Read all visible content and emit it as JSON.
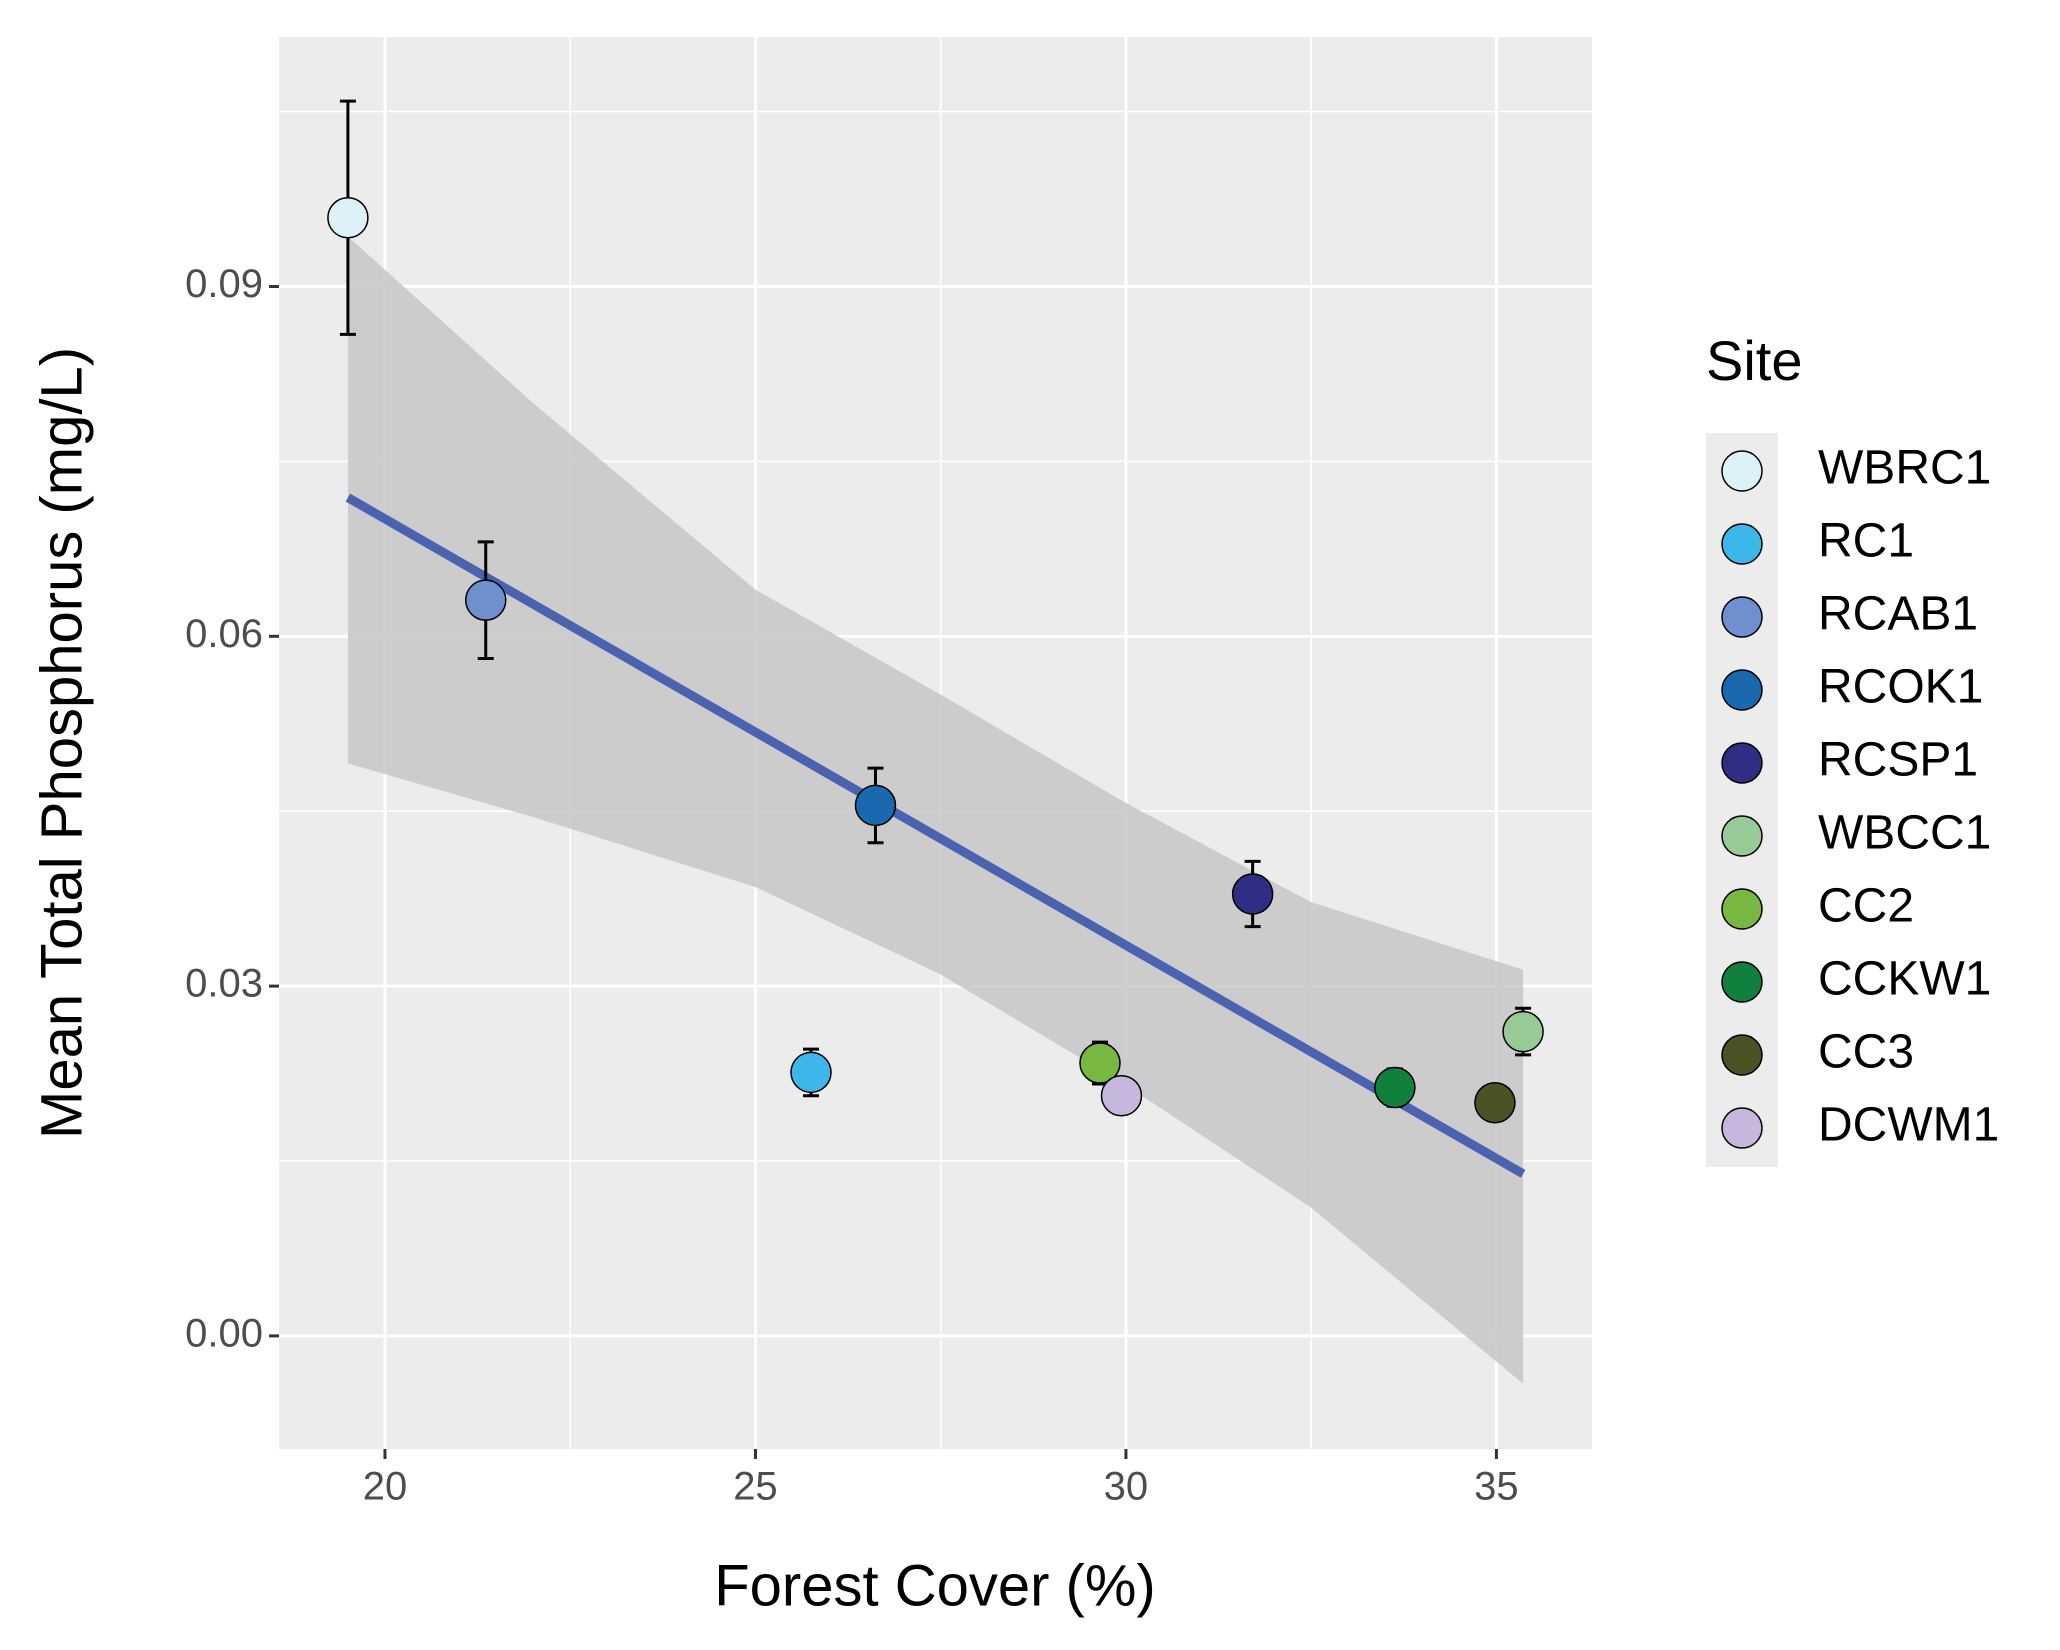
{
  "chart_data": {
    "type": "scatter",
    "x_label": "Forest Cover (%)",
    "y_label": "Mean Total Phosphorus (mg/L)",
    "legend_title": "Site",
    "legend_position": "right",
    "grid": true,
    "xlim": [
      18.57,
      36.29
    ],
    "ylim": [
      -0.0097,
      0.1114
    ],
    "xticks": [
      20,
      25,
      30,
      35
    ],
    "xminor": [
      22.5,
      27.5,
      32.5
    ],
    "yticks": [
      {
        "value": 0,
        "label": "0.00"
      },
      0.03,
      0.06,
      0.09
    ],
    "yminor": [
      0.015,
      0.045,
      0.075,
      0.105
    ],
    "series": [
      {
        "name": "WBRC1",
        "color": "#ddf1f8",
        "x": 19.5,
        "y": 0.0959,
        "error": 0.01
      },
      {
        "name": "RC1",
        "color": "#3db7e9",
        "x": 25.75,
        "y": 0.0226,
        "error": 0.002
      },
      {
        "name": "RCAB1",
        "color": "#6f8fce",
        "x": 21.36,
        "y": 0.0631,
        "error": 0.005
      },
      {
        "name": "RCOK1",
        "color": "#1a68ad",
        "x": 26.62,
        "y": 0.0455,
        "error": 0.0032
      },
      {
        "name": "RCSP1",
        "color": "#2e2e85",
        "x": 31.71,
        "y": 0.0379,
        "error": 0.0028
      },
      {
        "name": "WBCC1",
        "color": "#98ca98",
        "x": 35.36,
        "y": 0.0261,
        "error": 0.002
      },
      {
        "name": "CC2",
        "color": "#78b842",
        "x": 29.65,
        "y": 0.0234,
        "error": 0.0018
      },
      {
        "name": "CCKW1",
        "color": "#11803e",
        "x": 33.63,
        "y": 0.0213,
        "error": 0.0016
      },
      {
        "name": "CC3",
        "color": "#4c5224",
        "x": 34.98,
        "y": 0.02,
        "error": null
      },
      {
        "name": "DCWM1",
        "color": "#c7b7dc",
        "x": 29.94,
        "y": 0.0206,
        "error": null
      }
    ],
    "fit": {
      "color": "#4a62b0",
      "x": [
        19.5,
        35.36
      ],
      "y": [
        0.0719,
        0.0139
      ]
    },
    "ribbon": {
      "color": "#c9c9c9",
      "x": [
        19.5,
        22,
        25,
        27.5,
        30,
        32.5,
        35.36
      ],
      "upper": [
        0.0943,
        0.08,
        0.064,
        0.055,
        0.0457,
        0.0372,
        0.0314
      ],
      "lower": [
        0.0491,
        0.0445,
        0.0385,
        0.031,
        0.0215,
        0.011,
        -0.0041
      ]
    }
  }
}
